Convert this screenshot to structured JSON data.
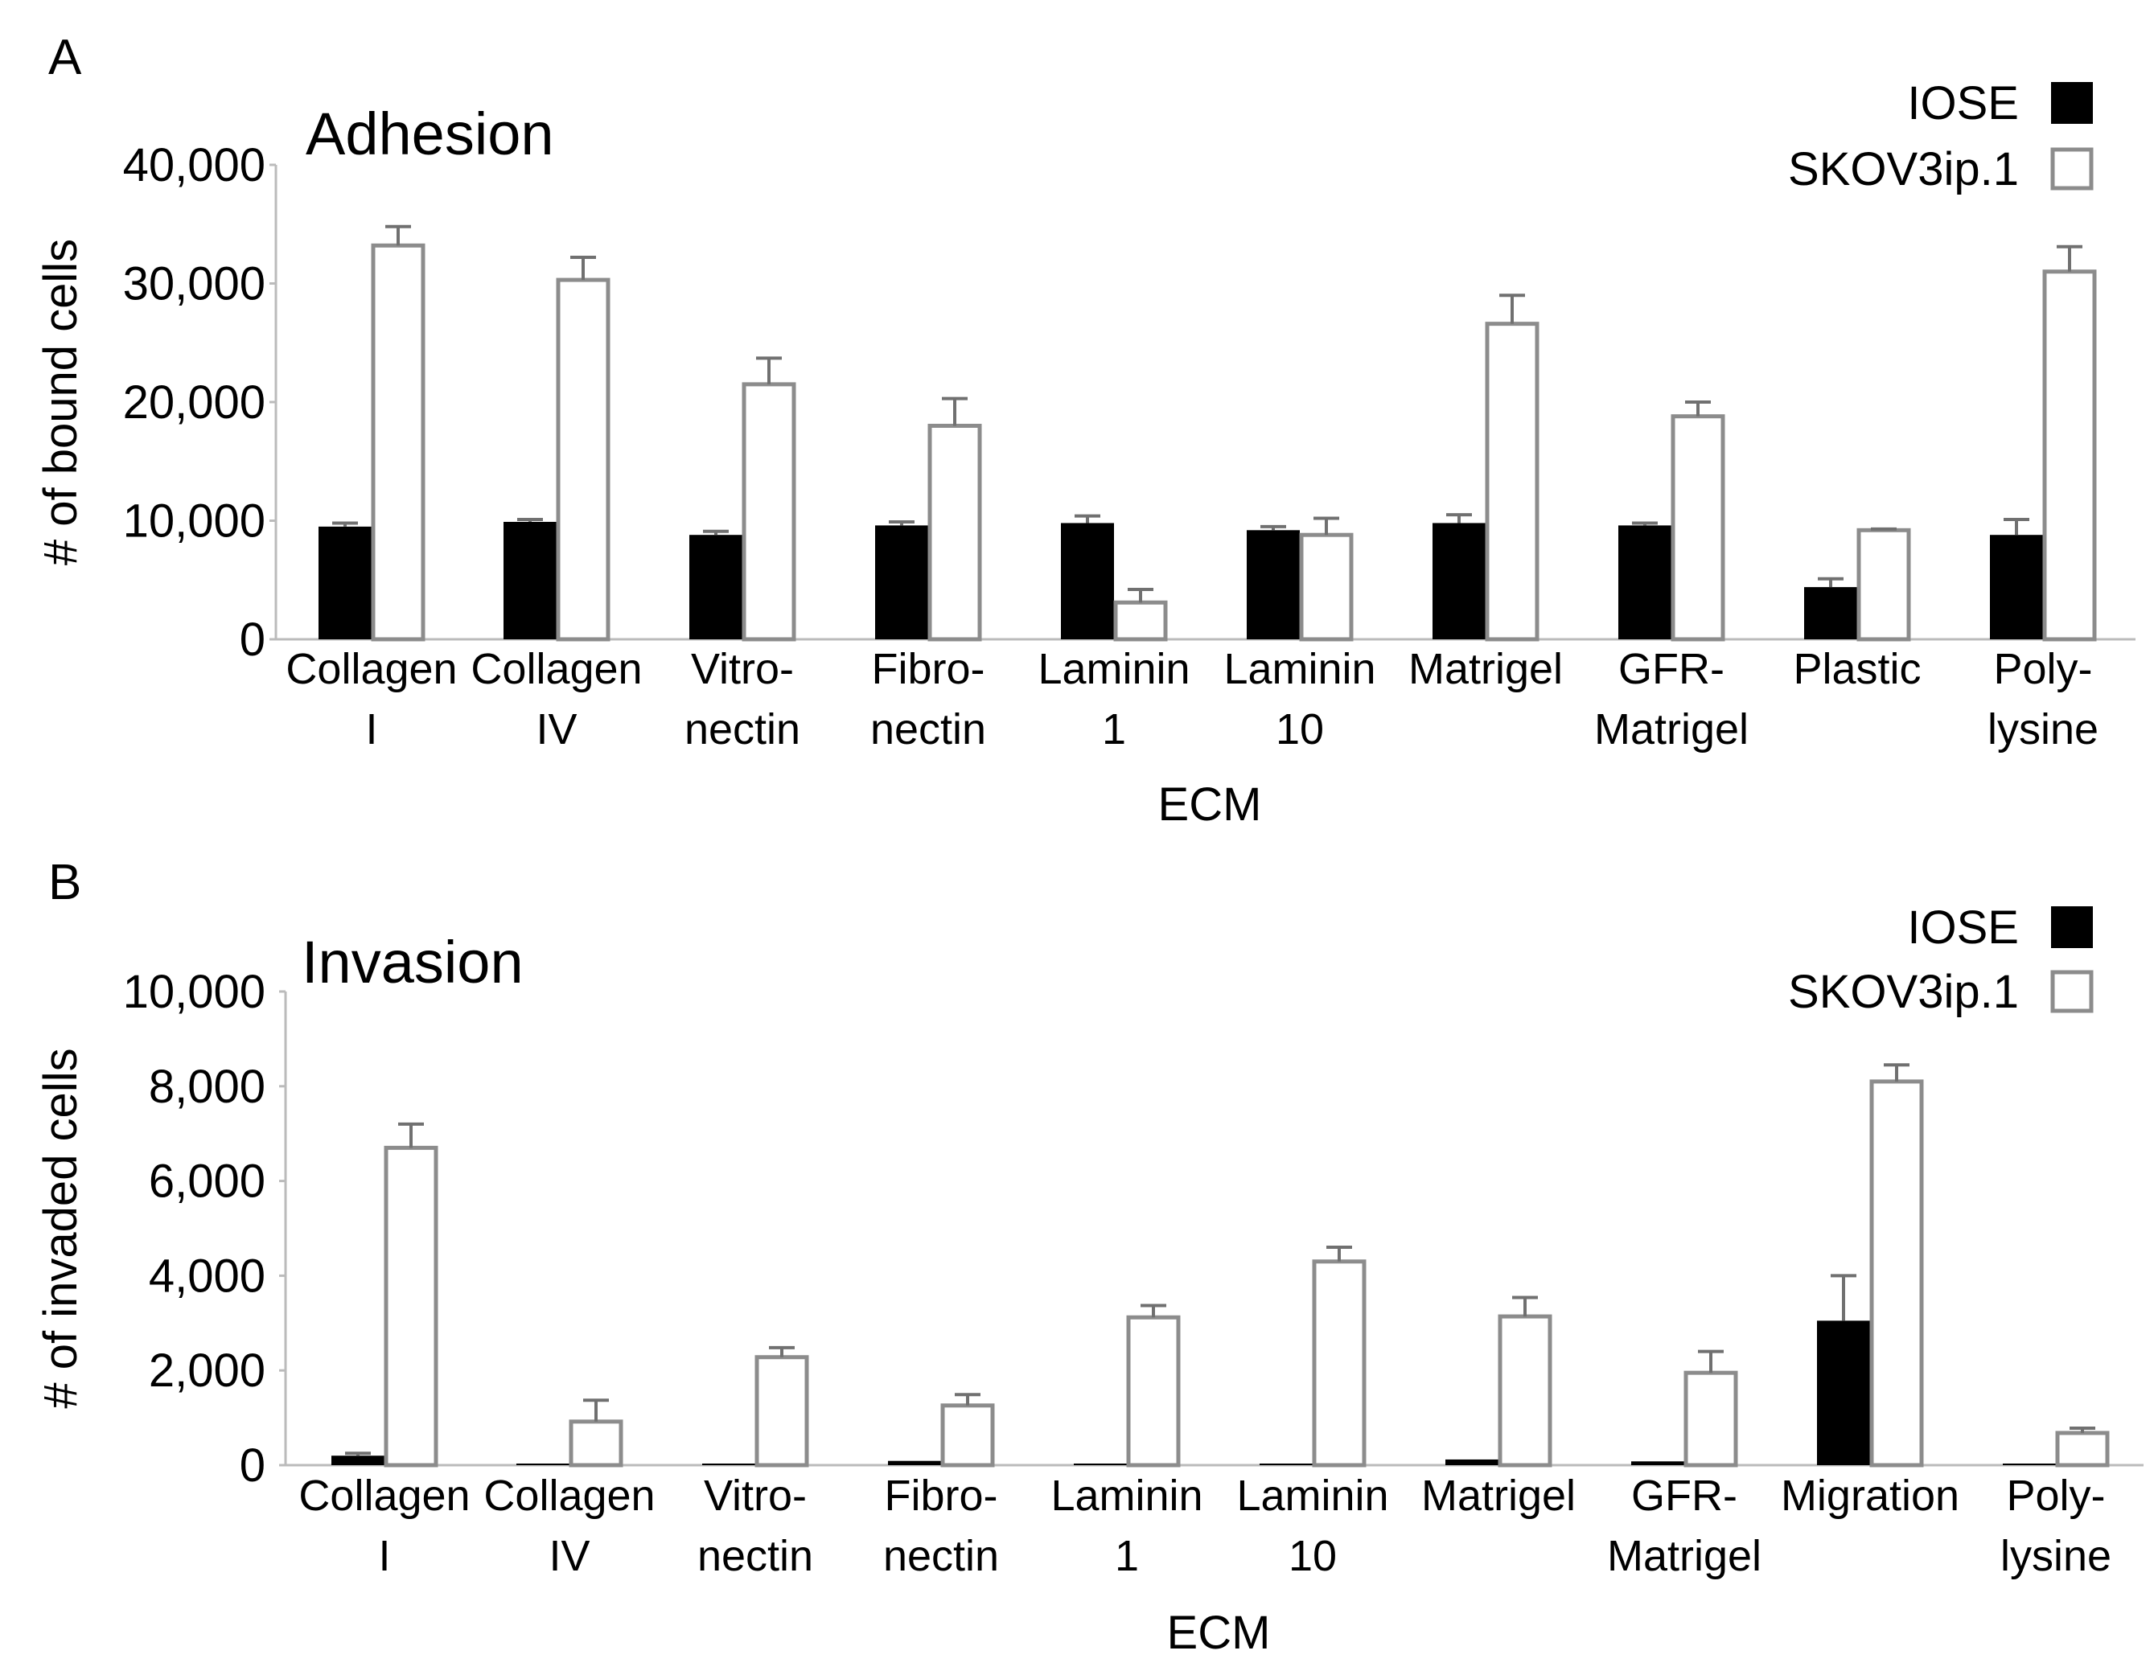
{
  "figure": {
    "panels": [
      "A",
      "B"
    ]
  },
  "colors": {
    "iose_fill": "#000000",
    "skov_fill": "#ffffff",
    "skov_stroke": "#8c8c8c",
    "axis": "#bbbbbb",
    "errorbar": "#707070"
  },
  "chart_data": [
    {
      "panel": "A",
      "type": "bar",
      "title": "Adhesion",
      "xlabel": "ECM",
      "ylabel": "# of bound cells",
      "ylim": [
        0,
        40000
      ],
      "yticks": [
        0,
        10000,
        20000,
        30000,
        40000
      ],
      "ytick_labels": [
        "0",
        "10,000",
        "20,000",
        "30,000",
        "40,000"
      ],
      "categories": [
        [
          "Collagen",
          "I"
        ],
        [
          "Collagen",
          "IV"
        ],
        [
          "Vitro-",
          "nectin"
        ],
        [
          "Fibro-",
          "nectin"
        ],
        [
          "Laminin",
          "1"
        ],
        [
          "Laminin",
          "10"
        ],
        [
          "Matrigel",
          ""
        ],
        [
          "GFR-",
          "Matrigel"
        ],
        [
          "Plastic",
          ""
        ],
        [
          "Poly-",
          "lysine"
        ]
      ],
      "legend": [
        "IOSE",
        "SKOV3ip.1"
      ],
      "legend_position": "top-right",
      "series": [
        {
          "name": "IOSE",
          "values": [
            9500,
            9900,
            8800,
            9600,
            9800,
            9200,
            9800,
            9600,
            4400,
            8800
          ],
          "errors": [
            300,
            200,
            300,
            300,
            600,
            300,
            700,
            200,
            700,
            1300
          ]
        },
        {
          "name": "SKOV3ip.1",
          "values": [
            33200,
            30300,
            21500,
            18000,
            3100,
            8800,
            26600,
            18800,
            9200,
            31000
          ],
          "errors": [
            1600,
            1900,
            2200,
            2300,
            1100,
            1400,
            2400,
            1200,
            100,
            2100
          ]
        }
      ]
    },
    {
      "panel": "B",
      "type": "bar",
      "title": "Invasion",
      "xlabel": "ECM",
      "ylabel": "# of invaded cells",
      "ylim": [
        0,
        10000
      ],
      "yticks": [
        0,
        2000,
        4000,
        6000,
        8000,
        10000
      ],
      "ytick_labels": [
        "0",
        "2,000",
        "4,000",
        "6,000",
        "8,000",
        "10,000"
      ],
      "categories": [
        [
          "Collagen",
          "I"
        ],
        [
          "Collagen",
          "IV"
        ],
        [
          "Vitro-",
          "nectin"
        ],
        [
          "Fibro-",
          "nectin"
        ],
        [
          "Laminin",
          "1"
        ],
        [
          "Laminin",
          "10"
        ],
        [
          "Matrigel",
          ""
        ],
        [
          "GFR-",
          "Matrigel"
        ],
        [
          "Migration",
          ""
        ],
        [
          "Poly-",
          "lysine"
        ]
      ],
      "legend": [
        "IOSE",
        "SKOV3ip.1"
      ],
      "legend_position": "top-right",
      "series": [
        {
          "name": "IOSE",
          "values": [
            200,
            30,
            30,
            90,
            10,
            10,
            120,
            80,
            3050,
            10
          ],
          "errors": [
            50,
            0,
            0,
            0,
            0,
            0,
            0,
            0,
            950,
            0
          ]
        },
        {
          "name": "SKOV3ip.1",
          "values": [
            6700,
            920,
            2280,
            1260,
            3120,
            4300,
            3140,
            1950,
            8100,
            680
          ],
          "errors": [
            500,
            450,
            200,
            230,
            250,
            300,
            400,
            450,
            350,
            100
          ]
        }
      ]
    }
  ]
}
